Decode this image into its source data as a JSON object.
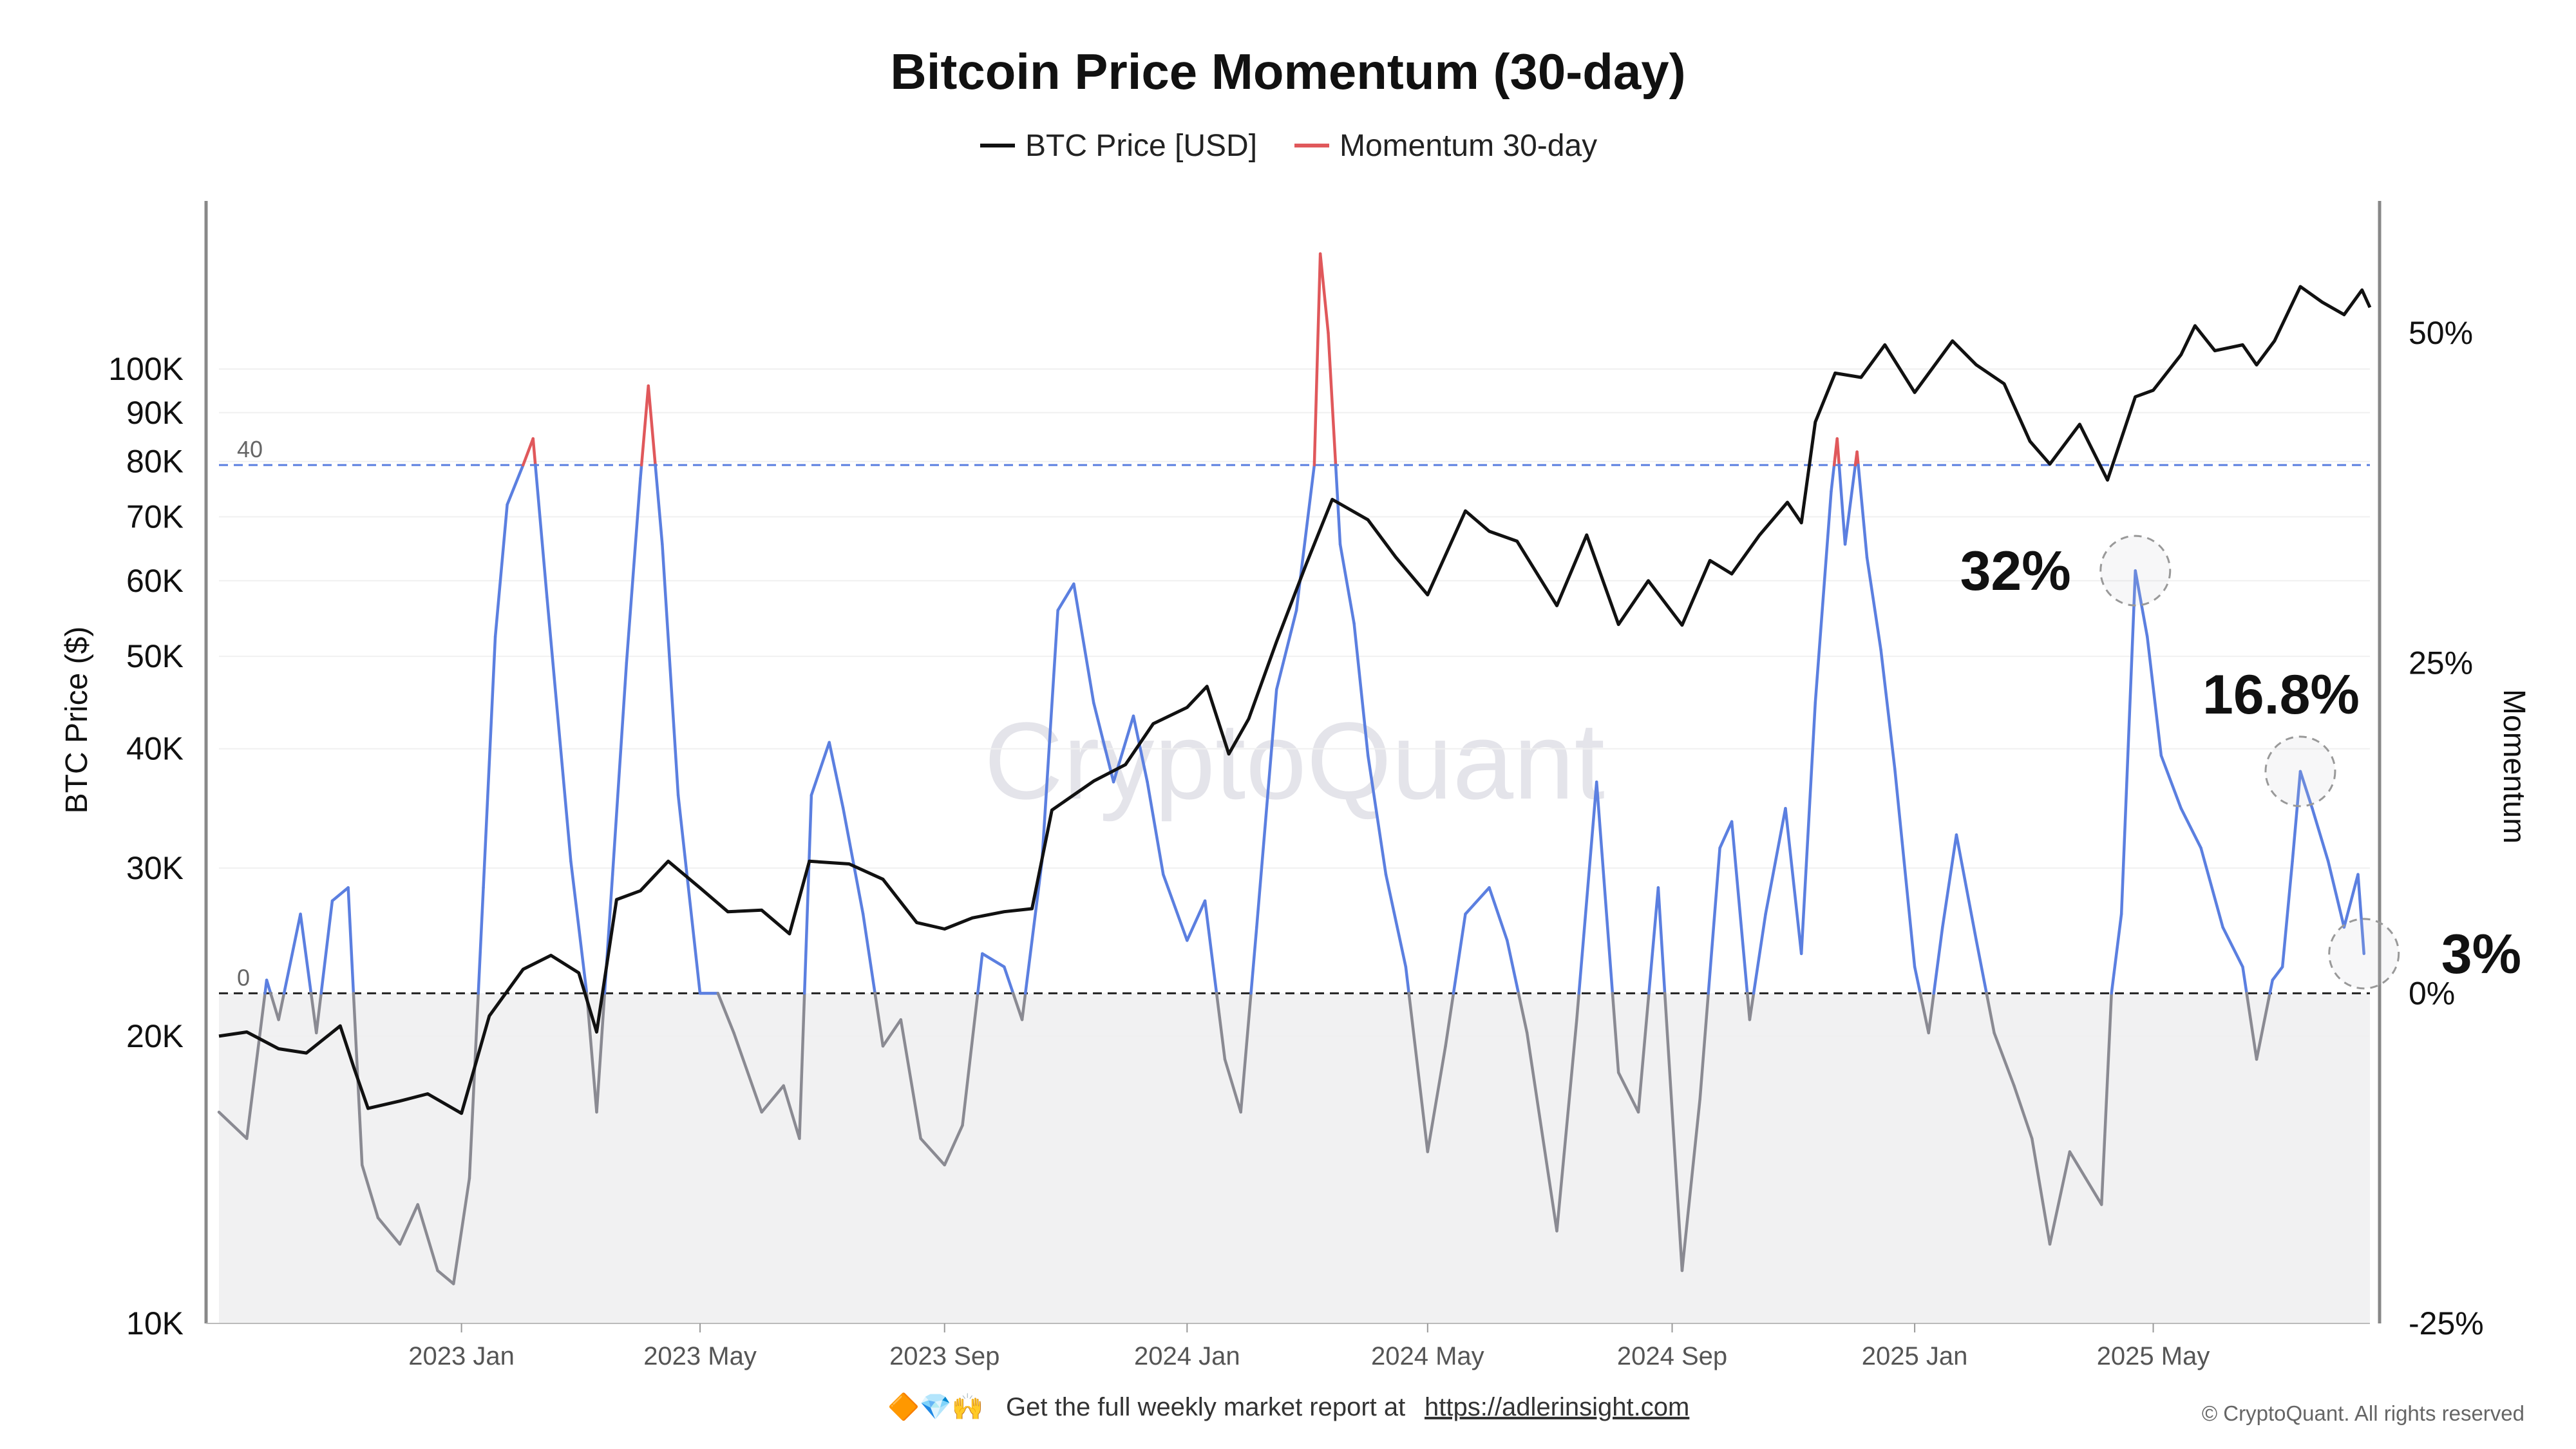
{
  "chart_data": {
    "type": "line",
    "title": "Bitcoin Price Momentum (30-day)",
    "legend": [
      {
        "label": "BTC Price [USD]",
        "color": "#111111"
      },
      {
        "label": "Momentum 30-day",
        "color": "#e0585b"
      }
    ],
    "legend_position": "top-center",
    "y_left": {
      "label": "BTC Price ($)",
      "scale": "log",
      "range": [
        10000,
        150000
      ],
      "ticks": [
        {
          "value": 10000,
          "label": "10K"
        },
        {
          "value": 20000,
          "label": "20K"
        },
        {
          "value": 30000,
          "label": "30K"
        },
        {
          "value": 40000,
          "label": "40K"
        },
        {
          "value": 50000,
          "label": "50K"
        },
        {
          "value": 60000,
          "label": "60K"
        },
        {
          "value": 70000,
          "label": "70K"
        },
        {
          "value": 80000,
          "label": "80K"
        },
        {
          "value": 90000,
          "label": "90K"
        },
        {
          "value": 100000,
          "label": "100K"
        }
      ]
    },
    "y_right": {
      "label": "Momentum",
      "range": [
        -25,
        60
      ],
      "ticks": [
        {
          "value": 50,
          "label": "50%"
        },
        {
          "value": 25,
          "label": "25%"
        },
        {
          "value": 0,
          "label": "0%"
        },
        {
          "value": -25,
          "label": "-25%"
        }
      ]
    },
    "x_axis": {
      "range": [
        "2022-09-01",
        "2025-08-18"
      ],
      "ticks": [
        {
          "date": "2023-01-01",
          "label": "2023 Jan"
        },
        {
          "date": "2023-05-01",
          "label": "2023 May"
        },
        {
          "date": "2023-09-01",
          "label": "2023 Sep"
        },
        {
          "date": "2024-01-01",
          "label": "2024 Jan"
        },
        {
          "date": "2024-05-01",
          "label": "2024 May"
        },
        {
          "date": "2024-09-01",
          "label": "2024 Sep"
        },
        {
          "date": "2025-01-01",
          "label": "2025 Jan"
        },
        {
          "date": "2025-05-01",
          "label": "2025 May"
        }
      ]
    },
    "reference_lines": [
      {
        "axis": "momentum",
        "value": 40,
        "label": "40",
        "color": "#5b7fe0",
        "style": "dashed"
      },
      {
        "axis": "momentum",
        "value": 0,
        "label": "0",
        "color": "#222222",
        "style": "dashed"
      }
    ],
    "momentum_colors": {
      "above_40": "#e0585b",
      "positive": "#5b7fe0",
      "negative": "#8a8a92"
    },
    "negative_zone_fill": "#f1f1f2",
    "annotations": [
      {
        "text": "32%",
        "date": "2025-04-22",
        "value": 32
      },
      {
        "text": "16.8%",
        "date": "2025-07-14",
        "value": 16.8
      },
      {
        "text": "3%",
        "date": "2025-08-15",
        "value": 3
      }
    ],
    "series": [
      {
        "name": "BTC Price [USD]",
        "axis": "left",
        "color": "#111111",
        "points": [
          [
            "2022-09-01",
            20000
          ],
          [
            "2022-09-15",
            20200
          ],
          [
            "2022-10-01",
            19400
          ],
          [
            "2022-10-15",
            19200
          ],
          [
            "2022-11-01",
            20500
          ],
          [
            "2022-11-08",
            18500
          ],
          [
            "2022-11-15",
            16800
          ],
          [
            "2022-12-01",
            17100
          ],
          [
            "2022-12-15",
            17400
          ],
          [
            "2023-01-01",
            16600
          ],
          [
            "2023-01-15",
            21000
          ],
          [
            "2023-02-01",
            23500
          ],
          [
            "2023-02-15",
            24300
          ],
          [
            "2023-03-01",
            23300
          ],
          [
            "2023-03-10",
            20200
          ],
          [
            "2023-03-20",
            27800
          ],
          [
            "2023-04-01",
            28400
          ],
          [
            "2023-04-15",
            30500
          ],
          [
            "2023-05-01",
            28600
          ],
          [
            "2023-05-15",
            27000
          ],
          [
            "2023-06-01",
            27100
          ],
          [
            "2023-06-15",
            25600
          ],
          [
            "2023-06-25",
            30500
          ],
          [
            "2023-07-15",
            30300
          ],
          [
            "2023-08-01",
            29200
          ],
          [
            "2023-08-18",
            26300
          ],
          [
            "2023-09-01",
            25900
          ],
          [
            "2023-09-15",
            26600
          ],
          [
            "2023-10-01",
            27000
          ],
          [
            "2023-10-15",
            27200
          ],
          [
            "2023-10-25",
            34500
          ],
          [
            "2023-11-15",
            37000
          ],
          [
            "2023-12-01",
            38500
          ],
          [
            "2023-12-15",
            42500
          ],
          [
            "2024-01-01",
            44200
          ],
          [
            "2024-01-11",
            46500
          ],
          [
            "2024-01-22",
            39500
          ],
          [
            "2024-02-01",
            43000
          ],
          [
            "2024-02-15",
            51800
          ],
          [
            "2024-03-01",
            62500
          ],
          [
            "2024-03-14",
            73000
          ],
          [
            "2024-04-01",
            69500
          ],
          [
            "2024-04-15",
            63500
          ],
          [
            "2024-05-01",
            58000
          ],
          [
            "2024-05-20",
            71000
          ],
          [
            "2024-06-01",
            67600
          ],
          [
            "2024-06-15",
            66000
          ],
          [
            "2024-07-05",
            56500
          ],
          [
            "2024-07-20",
            67000
          ],
          [
            "2024-08-05",
            54000
          ],
          [
            "2024-08-20",
            60000
          ],
          [
            "2024-09-06",
            53900
          ],
          [
            "2024-09-20",
            63000
          ],
          [
            "2024-10-01",
            61000
          ],
          [
            "2024-10-15",
            67000
          ],
          [
            "2024-10-29",
            72500
          ],
          [
            "2024-11-05",
            69000
          ],
          [
            "2024-11-12",
            88000
          ],
          [
            "2024-11-22",
            99000
          ],
          [
            "2024-12-05",
            98000
          ],
          [
            "2024-12-17",
            106000
          ],
          [
            "2025-01-01",
            94500
          ],
          [
            "2025-01-20",
            107000
          ],
          [
            "2025-02-01",
            101000
          ],
          [
            "2025-02-15",
            96500
          ],
          [
            "2025-02-28",
            84000
          ],
          [
            "2025-03-10",
            79500
          ],
          [
            "2025-03-25",
            87500
          ],
          [
            "2025-04-08",
            76500
          ],
          [
            "2025-04-22",
            93500
          ],
          [
            "2025-05-01",
            95000
          ],
          [
            "2025-05-15",
            103500
          ],
          [
            "2025-05-22",
            111000
          ],
          [
            "2025-06-01",
            104500
          ],
          [
            "2025-06-15",
            106000
          ],
          [
            "2025-06-22",
            101000
          ],
          [
            "2025-07-01",
            107000
          ],
          [
            "2025-07-14",
            122000
          ],
          [
            "2025-07-25",
            117500
          ],
          [
            "2025-08-05",
            114000
          ],
          [
            "2025-08-14",
            121000
          ],
          [
            "2025-08-18",
            116000
          ]
        ]
      },
      {
        "name": "Momentum 30-day",
        "axis": "right",
        "color": "#5b7fe0",
        "points": [
          [
            "2022-09-01",
            -9
          ],
          [
            "2022-09-15",
            -11
          ],
          [
            "2022-09-25",
            1
          ],
          [
            "2022-10-01",
            -2
          ],
          [
            "2022-10-12",
            6
          ],
          [
            "2022-10-20",
            -3
          ],
          [
            "2022-10-28",
            7
          ],
          [
            "2022-11-05",
            8
          ],
          [
            "2022-11-12",
            -13
          ],
          [
            "2022-11-20",
            -17
          ],
          [
            "2022-12-01",
            -19
          ],
          [
            "2022-12-10",
            -16
          ],
          [
            "2022-12-20",
            -21
          ],
          [
            "2022-12-28",
            -22
          ],
          [
            "2023-01-05",
            -14
          ],
          [
            "2023-01-12",
            8
          ],
          [
            "2023-01-18",
            27
          ],
          [
            "2023-01-24",
            37
          ],
          [
            "2023-02-01",
            40
          ],
          [
            "2023-02-06",
            42
          ],
          [
            "2023-02-13",
            30
          ],
          [
            "2023-02-25",
            10
          ],
          [
            "2023-03-05",
            0
          ],
          [
            "2023-03-10",
            -9
          ],
          [
            "2023-03-18",
            9
          ],
          [
            "2023-03-25",
            25
          ],
          [
            "2023-04-01",
            39
          ],
          [
            "2023-04-05",
            46
          ],
          [
            "2023-04-12",
            34
          ],
          [
            "2023-04-20",
            15
          ],
          [
            "2023-05-01",
            0
          ],
          [
            "2023-05-10",
            0
          ],
          [
            "2023-05-18",
            -3
          ],
          [
            "2023-06-01",
            -9
          ],
          [
            "2023-06-12",
            -7
          ],
          [
            "2023-06-20",
            -11
          ],
          [
            "2023-06-26",
            15
          ],
          [
            "2023-07-05",
            19
          ],
          [
            "2023-07-12",
            14
          ],
          [
            "2023-07-22",
            6
          ],
          [
            "2023-08-01",
            -4
          ],
          [
            "2023-08-10",
            -2
          ],
          [
            "2023-08-20",
            -11
          ],
          [
            "2023-09-01",
            -13
          ],
          [
            "2023-09-10",
            -10
          ],
          [
            "2023-09-20",
            3
          ],
          [
            "2023-10-01",
            2
          ],
          [
            "2023-10-10",
            -2
          ],
          [
            "2023-10-20",
            10
          ],
          [
            "2023-10-28",
            29
          ],
          [
            "2023-11-05",
            31
          ],
          [
            "2023-11-15",
            22
          ],
          [
            "2023-11-25",
            16
          ],
          [
            "2023-12-05",
            21
          ],
          [
            "2023-12-12",
            16
          ],
          [
            "2023-12-20",
            9
          ],
          [
            "2024-01-01",
            4
          ],
          [
            "2024-01-10",
            7
          ],
          [
            "2024-01-20",
            -5
          ],
          [
            "2024-01-28",
            -9
          ],
          [
            "2024-02-05",
            5
          ],
          [
            "2024-02-15",
            23
          ],
          [
            "2024-02-25",
            29
          ],
          [
            "2024-03-05",
            40
          ],
          [
            "2024-03-08",
            56
          ],
          [
            "2024-03-12",
            50
          ],
          [
            "2024-03-18",
            34
          ],
          [
            "2024-03-25",
            28
          ],
          [
            "2024-04-01",
            18
          ],
          [
            "2024-04-10",
            9
          ],
          [
            "2024-04-20",
            2
          ],
          [
            "2024-05-01",
            -12
          ],
          [
            "2024-05-10",
            -4
          ],
          [
            "2024-05-20",
            6
          ],
          [
            "2024-06-01",
            8
          ],
          [
            "2024-06-10",
            4
          ],
          [
            "2024-06-20",
            -3
          ],
          [
            "2024-07-05",
            -18
          ],
          [
            "2024-07-15",
            -2
          ],
          [
            "2024-07-25",
            16
          ],
          [
            "2024-08-05",
            -6
          ],
          [
            "2024-08-15",
            -9
          ],
          [
            "2024-08-25",
            8
          ],
          [
            "2024-09-06",
            -21
          ],
          [
            "2024-09-15",
            -8
          ],
          [
            "2024-09-25",
            11
          ],
          [
            "2024-10-01",
            13
          ],
          [
            "2024-10-10",
            -2
          ],
          [
            "2024-10-18",
            6
          ],
          [
            "2024-10-28",
            14
          ],
          [
            "2024-11-05",
            3
          ],
          [
            "2024-11-12",
            22
          ],
          [
            "2024-11-20",
            38
          ],
          [
            "2024-11-23",
            42
          ],
          [
            "2024-11-27",
            34
          ],
          [
            "2024-12-03",
            41
          ],
          [
            "2024-12-08",
            33
          ],
          [
            "2024-12-15",
            26
          ],
          [
            "2024-12-22",
            17
          ],
          [
            "2025-01-01",
            2
          ],
          [
            "2025-01-08",
            -3
          ],
          [
            "2025-01-15",
            5
          ],
          [
            "2025-01-22",
            12
          ],
          [
            "2025-02-01",
            4
          ],
          [
            "2025-02-10",
            -3
          ],
          [
            "2025-02-20",
            -7
          ],
          [
            "2025-03-01",
            -11
          ],
          [
            "2025-03-10",
            -19
          ],
          [
            "2025-03-20",
            -12
          ],
          [
            "2025-03-28",
            -14
          ],
          [
            "2025-04-05",
            -16
          ],
          [
            "2025-04-10",
            0
          ],
          [
            "2025-04-15",
            6
          ],
          [
            "2025-04-22",
            32
          ],
          [
            "2025-04-28",
            27
          ],
          [
            "2025-05-05",
            18
          ],
          [
            "2025-05-15",
            14
          ],
          [
            "2025-05-25",
            11
          ],
          [
            "2025-06-05",
            5
          ],
          [
            "2025-06-15",
            2
          ],
          [
            "2025-06-22",
            -5
          ],
          [
            "2025-06-30",
            1
          ],
          [
            "2025-07-05",
            2
          ],
          [
            "2025-07-10",
            10
          ],
          [
            "2025-07-14",
            16.8
          ],
          [
            "2025-07-20",
            14
          ],
          [
            "2025-07-28",
            10
          ],
          [
            "2025-08-05",
            5
          ],
          [
            "2025-08-12",
            9
          ],
          [
            "2025-08-15",
            3
          ]
        ]
      }
    ]
  },
  "watermark": "CryptoQuant",
  "footer": {
    "emoji": "🔶💎🙌",
    "text": "Get the full weekly market report at",
    "link": "https://adlerinsight.com"
  },
  "copyright": "© CryptoQuant. All rights reserved"
}
